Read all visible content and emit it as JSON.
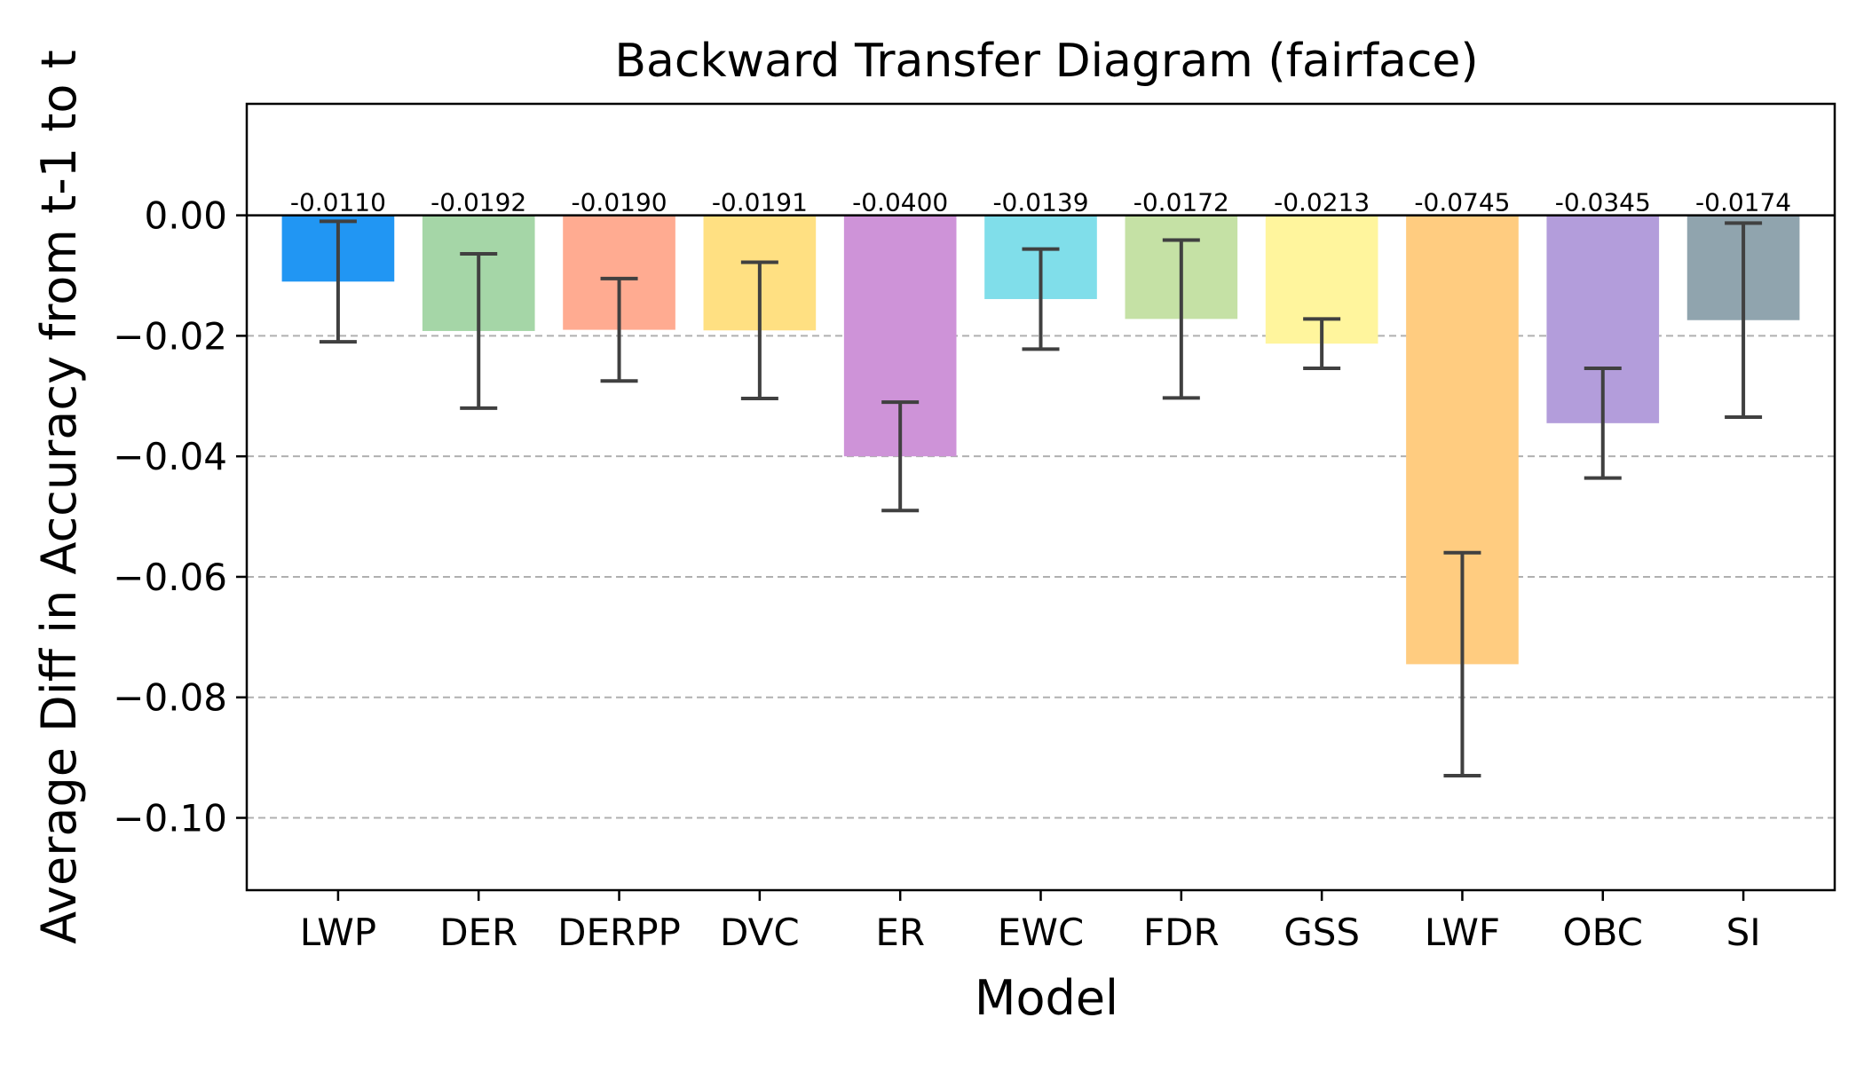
{
  "chart_data": {
    "type": "bar",
    "title": "Backward Transfer Diagram (fairface)",
    "xlabel": "Model",
    "ylabel": "Average Diff in Accuracy from t-1 to t",
    "ylim": [
      -0.112,
      0.0185
    ],
    "yticks": [
      0.0,
      -0.02,
      -0.04,
      -0.06,
      -0.08,
      -0.1
    ],
    "ytick_labels": [
      "0.00",
      "−0.02",
      "−0.04",
      "−0.06",
      "−0.08",
      "−0.10"
    ],
    "grid": "y-dashed",
    "categories": [
      "LWP",
      "DER",
      "DERPP",
      "DVC",
      "ER",
      "EWC",
      "FDR",
      "GSS",
      "LWF",
      "OBC",
      "SI"
    ],
    "values": [
      -0.011,
      -0.0192,
      -0.019,
      -0.0191,
      -0.04,
      -0.0139,
      -0.0172,
      -0.0213,
      -0.0745,
      -0.0345,
      -0.0174
    ],
    "value_labels": [
      "-0.0110",
      "-0.0192",
      "-0.0190",
      "-0.0191",
      "-0.0400",
      "-0.0139",
      "-0.0172",
      "-0.0213",
      "-0.0745",
      "-0.0345",
      "-0.0174"
    ],
    "errors": [
      0.01,
      0.0128,
      0.0085,
      0.0113,
      0.009,
      0.0083,
      0.0131,
      0.0041,
      0.0185,
      0.0091,
      0.0161
    ],
    "colors": [
      "#2196F3",
      "#A5D6A7",
      "#FFAB91",
      "#FFE082",
      "#CE93D8",
      "#80DEEA",
      "#C5E1A5",
      "#FFF59D",
      "#FFCC80",
      "#B39DDB",
      "#90A4AE"
    ],
    "error_color": "#404040"
  }
}
